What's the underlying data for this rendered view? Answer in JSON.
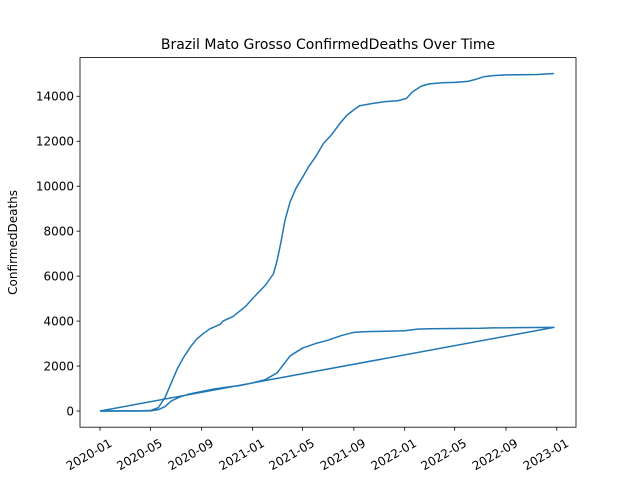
{
  "chart_data": {
    "type": "line",
    "title": "Brazil Mato Grosso ConfirmedDeaths Over Time",
    "xlabel": "",
    "ylabel": "ConfirmedDeaths",
    "xlim": [
      "2019-11-14",
      "2023-02-16"
    ],
    "ylim": [
      -720,
      15720
    ],
    "grid": false,
    "legend": "none",
    "line_color": "#1f77b4",
    "x_ticks": [
      "2020-01",
      "2020-05",
      "2020-09",
      "2021-01",
      "2021-05",
      "2021-09",
      "2022-01",
      "2022-05",
      "2022-09",
      "2023-01"
    ],
    "y_ticks": [
      "0",
      "2000",
      "4000",
      "6000",
      "8000",
      "10000",
      "12000",
      "14000"
    ],
    "series": [
      {
        "points": [
          [
            "2020-01-01",
            0
          ],
          [
            "2020-03-20",
            0
          ],
          [
            "2020-05-01",
            5
          ],
          [
            "2020-05-20",
            60
          ],
          [
            "2020-06-05",
            200
          ],
          [
            "2020-06-20",
            450
          ],
          [
            "2020-07-10",
            620
          ],
          [
            "2020-08-01",
            750
          ],
          [
            "2020-09-01",
            870
          ],
          [
            "2020-10-01",
            980
          ],
          [
            "2020-11-01",
            1060
          ],
          [
            "2020-12-01",
            1130
          ],
          [
            "2021-01-01",
            1250
          ],
          [
            "2021-02-01",
            1400
          ],
          [
            "2021-03-01",
            1700
          ],
          [
            "2021-04-01",
            2450
          ],
          [
            "2021-05-01",
            2800
          ],
          [
            "2021-06-01",
            3000
          ],
          [
            "2021-07-01",
            3150
          ],
          [
            "2021-08-01",
            3350
          ],
          [
            "2021-09-01",
            3500
          ],
          [
            "2021-10-01",
            3530
          ],
          [
            "2021-11-01",
            3540
          ],
          [
            "2022-01-01",
            3570
          ],
          [
            "2022-02-01",
            3640
          ],
          [
            "2022-03-01",
            3660
          ],
          [
            "2022-05-01",
            3670
          ],
          [
            "2022-07-01",
            3680
          ],
          [
            "2022-08-01",
            3700
          ],
          [
            "2022-10-01",
            3710
          ],
          [
            "2022-12-25",
            3720
          ],
          [
            "2020-01-01",
            0
          ]
        ]
      },
      {
        "points": [
          [
            "2020-01-01",
            0
          ],
          [
            "2020-04-01",
            5
          ],
          [
            "2020-05-01",
            20
          ],
          [
            "2020-05-20",
            150
          ],
          [
            "2020-06-05",
            600
          ],
          [
            "2020-06-20",
            1250
          ],
          [
            "2020-07-05",
            1900
          ],
          [
            "2020-07-20",
            2400
          ],
          [
            "2020-08-05",
            2850
          ],
          [
            "2020-08-20",
            3200
          ],
          [
            "2020-09-05",
            3450
          ],
          [
            "2020-09-20",
            3650
          ],
          [
            "2020-10-15",
            3850
          ],
          [
            "2020-10-22",
            4000
          ],
          [
            "2020-11-15",
            4200
          ],
          [
            "2020-12-15",
            4650
          ],
          [
            "2021-01-01",
            5000
          ],
          [
            "2021-02-01",
            5600
          ],
          [
            "2021-02-20",
            6100
          ],
          [
            "2021-03-01",
            6700
          ],
          [
            "2021-03-10",
            7500
          ],
          [
            "2021-03-20",
            8500
          ],
          [
            "2021-04-01",
            9300
          ],
          [
            "2021-04-15",
            9900
          ],
          [
            "2021-05-01",
            10400
          ],
          [
            "2021-05-15",
            10850
          ],
          [
            "2021-06-01",
            11300
          ],
          [
            "2021-06-20",
            11900
          ],
          [
            "2021-07-10",
            12300
          ],
          [
            "2021-07-30",
            12800
          ],
          [
            "2021-08-15",
            13150
          ],
          [
            "2021-09-01",
            13400
          ],
          [
            "2021-09-15",
            13580
          ],
          [
            "2021-10-15",
            13680
          ],
          [
            "2021-11-15",
            13760
          ],
          [
            "2021-12-15",
            13800
          ],
          [
            "2022-01-05",
            13900
          ],
          [
            "2022-01-20",
            14200
          ],
          [
            "2022-02-10",
            14450
          ],
          [
            "2022-03-01",
            14550
          ],
          [
            "2022-04-01",
            14600
          ],
          [
            "2022-05-01",
            14620
          ],
          [
            "2022-06-01",
            14660
          ],
          [
            "2022-06-20",
            14750
          ],
          [
            "2022-07-10",
            14870
          ],
          [
            "2022-08-01",
            14920
          ],
          [
            "2022-09-01",
            14950
          ],
          [
            "2022-10-01",
            14960
          ],
          [
            "2022-11-15",
            14970
          ],
          [
            "2022-12-25",
            15010
          ]
        ]
      }
    ]
  }
}
